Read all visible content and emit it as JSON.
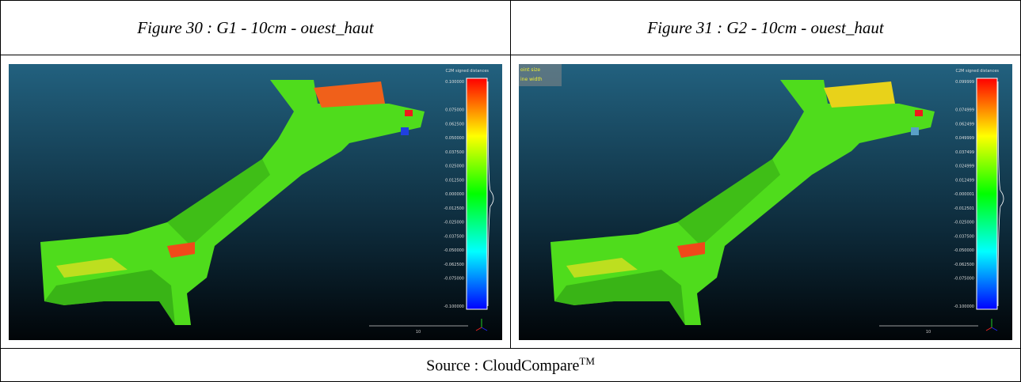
{
  "table": {
    "headers": [
      "Figure 30 : G1 - 10cm - ouest_haut",
      "Figure 31 : G2 - 10cm - ouest_haut"
    ],
    "figures": [
      {
        "scale_title": "C2M signed distances",
        "scale_labels": [
          "0.100000",
          "0.075000",
          "0.062500",
          "0.050000",
          "0.037500",
          "0.025000",
          "0.012500",
          "0.000000",
          "-0.012500",
          "-0.025000",
          "-0.037500",
          "-0.050000",
          "-0.062500",
          "-0.075000",
          "-0.100000"
        ],
        "scale_bar_label": "10"
      },
      {
        "scale_title": "C2M signed distances",
        "scale_labels": [
          "0.099999",
          "0.074999",
          "0.062499",
          "0.049999",
          "0.037499",
          "0.024999",
          "0.012499",
          "-0.000001",
          "-0.012501",
          "-0.025000",
          "-0.037500",
          "-0.050000",
          "-0.062500",
          "-0.075000",
          "-0.100000"
        ],
        "scale_bar_label": "10",
        "overlay": [
          "oint size",
          "ine width"
        ]
      }
    ],
    "source": {
      "text": "Source : CloudCompare",
      "superscript": "TM"
    }
  }
}
